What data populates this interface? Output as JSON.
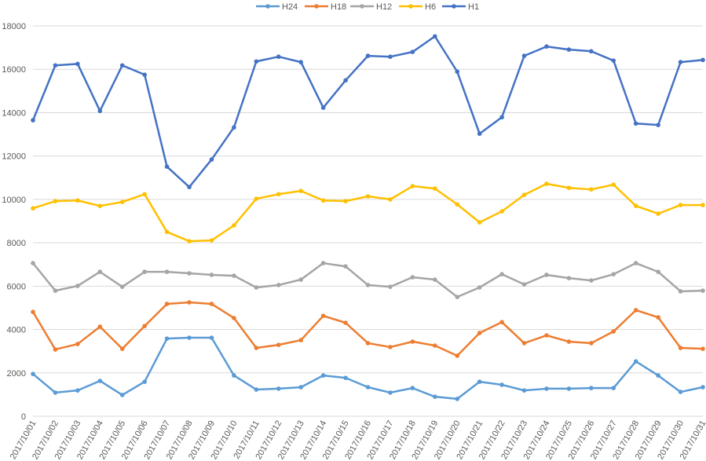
{
  "chart_data": {
    "type": "line",
    "title": "",
    "xlabel": "",
    "ylabel": "",
    "ylim": [
      0,
      18000
    ],
    "yticks": [
      0,
      2000,
      4000,
      6000,
      8000,
      10000,
      12000,
      14000,
      16000,
      18000
    ],
    "grid": "horizontal",
    "legend": "top",
    "categories": [
      "2017/10/01",
      "2017/10/02",
      "2017/10/03",
      "2017/10/04",
      "2017/10/05",
      "2017/10/06",
      "2017/10/07",
      "2017/10/08",
      "2017/10/09",
      "2017/10/10",
      "2017/10/11",
      "2017/10/12",
      "2017/10/13",
      "2017/10/14",
      "2017/10/15",
      "2017/10/16",
      "2017/10/17",
      "2017/10/18",
      "2017/10/19",
      "2017/10/20",
      "2017/10/21",
      "2017/10/22",
      "2017/10/23",
      "2017/10/24",
      "2017/10/25",
      "2017/10/26",
      "2017/10/27",
      "2017/10/28",
      "2017/10/29",
      "2017/10/30",
      "2017/10/31"
    ],
    "series": [
      {
        "name": "H24",
        "color": "#5B9BD5",
        "values": [
          1950,
          1090,
          1190,
          1630,
          980,
          1590,
          3580,
          3620,
          3620,
          1880,
          1230,
          1270,
          1340,
          1880,
          1770,
          1340,
          1090,
          1300,
          900,
          800,
          1590,
          1450,
          1190,
          1270,
          1270,
          1300,
          1300,
          2530,
          1880,
          1120,
          1340
        ]
      },
      {
        "name": "H18",
        "color": "#ED7D31",
        "values": [
          4810,
          3080,
          3330,
          4130,
          3110,
          4160,
          5180,
          5250,
          5180,
          4530,
          3150,
          3290,
          3510,
          4630,
          4310,
          3370,
          3190,
          3440,
          3260,
          2790,
          3840,
          4340,
          3370,
          3730,
          3440,
          3370,
          3910,
          4890,
          4560,
          3150,
          3110
        ]
      },
      {
        "name": "H12",
        "color": "#A5A5A5",
        "values": [
          7060,
          5790,
          6010,
          6660,
          5970,
          6660,
          6660,
          6590,
          6520,
          6480,
          5940,
          6050,
          6300,
          7060,
          6910,
          6050,
          5970,
          6410,
          6300,
          5500,
          5940,
          6550,
          6080,
          6520,
          6370,
          6260,
          6550,
          7060,
          6660,
          5760,
          5790
        ]
      },
      {
        "name": "H6",
        "color": "#FFC000",
        "values": [
          9590,
          9920,
          9950,
          9700,
          9880,
          10240,
          8500,
          8070,
          8110,
          8800,
          10030,
          10240,
          10390,
          9950,
          9920,
          10140,
          10000,
          10610,
          10500,
          9770,
          8940,
          9450,
          10210,
          10720,
          10530,
          10460,
          10680,
          9700,
          9340,
          9740,
          9740
        ]
      },
      {
        "name": "H1",
        "color": "#4472C4",
        "values": [
          13650,
          16180,
          16250,
          14080,
          16180,
          15750,
          11510,
          10570,
          11840,
          13320,
          16360,
          16580,
          16330,
          14230,
          15490,
          16620,
          16580,
          16800,
          17520,
          15890,
          13030,
          13790,
          16620,
          17050,
          16910,
          16830,
          16400,
          13500,
          13430,
          16330,
          16430
        ]
      }
    ]
  }
}
